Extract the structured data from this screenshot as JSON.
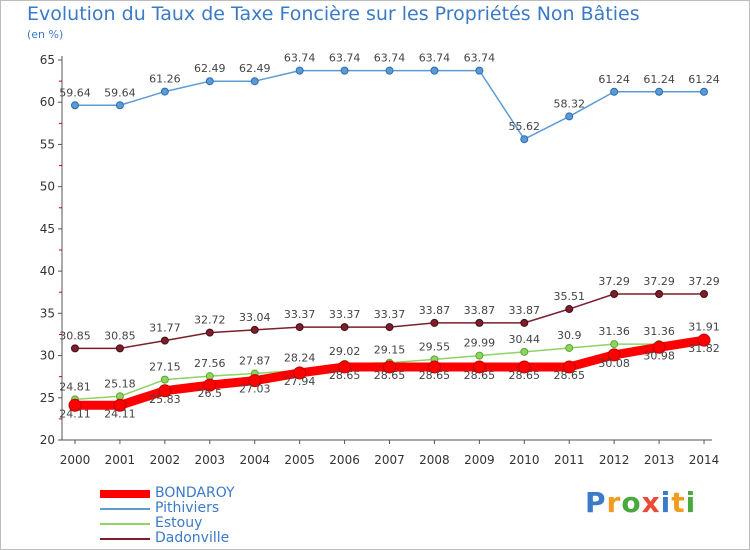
{
  "chart_data": {
    "type": "line",
    "title": "Evolution du Taux de Taxe Foncière sur les Propriétés Non Bâties",
    "subtitle": "(en %)",
    "x": [
      "2000",
      "2001",
      "2002",
      "2003",
      "2004",
      "2005",
      "2006",
      "2007",
      "2008",
      "2009",
      "2010",
      "2011",
      "2012",
      "2013",
      "2014"
    ],
    "ylim": [
      20,
      65
    ],
    "yticks": [
      20,
      25,
      30,
      35,
      40,
      45,
      50,
      55,
      60,
      65
    ],
    "grid": false,
    "legend_position": "bottom-left",
    "series": [
      {
        "name": "BONDAROY",
        "color": "#ff0000",
        "values": [
          24.11,
          24.11,
          25.83,
          26.5,
          27.03,
          27.94,
          28.65,
          28.65,
          28.65,
          28.65,
          28.65,
          28.65,
          30.08,
          30.98,
          31.82
        ],
        "labels": [
          "24.11",
          "24.11",
          "25.83",
          "26.5",
          "27.03",
          "27.94",
          "28.65",
          "28.65",
          "28.65",
          "28.65",
          "28.65",
          "28.65",
          "30.08",
          "30.98",
          "31.82"
        ]
      },
      {
        "name": "Pithiviers",
        "color": "#5b9bd5",
        "values": [
          59.64,
          59.64,
          61.26,
          62.49,
          62.49,
          63.74,
          63.74,
          63.74,
          63.74,
          63.74,
          55.62,
          58.32,
          61.24,
          61.24,
          61.24
        ],
        "labels": [
          "59.64",
          "59.64",
          "61.26",
          "62.49",
          "62.49",
          "63.74",
          "63.74",
          "63.74",
          "63.74",
          "63.74",
          "55.62",
          "58.32",
          "61.24",
          "61.24",
          "61.24"
        ]
      },
      {
        "name": "Estouy",
        "color": "#8ed461",
        "values": [
          24.81,
          25.18,
          27.15,
          27.56,
          27.87,
          28.24,
          29.02,
          29.15,
          29.55,
          29.99,
          30.44,
          30.9,
          31.36,
          31.36,
          31.91
        ],
        "labels": [
          "24.81",
          "25.18",
          "27.15",
          "27.56",
          "27.87",
          "28.24",
          "29.02",
          "29.15",
          "29.55",
          "29.99",
          "30.44",
          "30.9",
          "31.36",
          "31.36",
          "31.91"
        ]
      },
      {
        "name": "Dadonville",
        "color": "#7a1f2b",
        "values": [
          30.85,
          30.85,
          31.77,
          32.72,
          33.04,
          33.37,
          33.37,
          33.37,
          33.87,
          33.87,
          33.87,
          35.51,
          37.29,
          37.29,
          37.29
        ],
        "labels": [
          "30.85",
          "30.85",
          "31.77",
          "32.72",
          "33.04",
          "33.37",
          "33.37",
          "33.37",
          "33.87",
          "33.87",
          "33.87",
          "35.51",
          "37.29",
          "37.29",
          "37.29"
        ]
      }
    ]
  },
  "brand": {
    "letters": [
      "P",
      "r",
      "o",
      "x",
      "i",
      "t",
      "i"
    ],
    "colors": [
      "#3b7ac7",
      "#f29b1d",
      "#4aa83f",
      "#e94b35",
      "#3b7ac7",
      "#f29b1d",
      "#4aa83f"
    ]
  }
}
